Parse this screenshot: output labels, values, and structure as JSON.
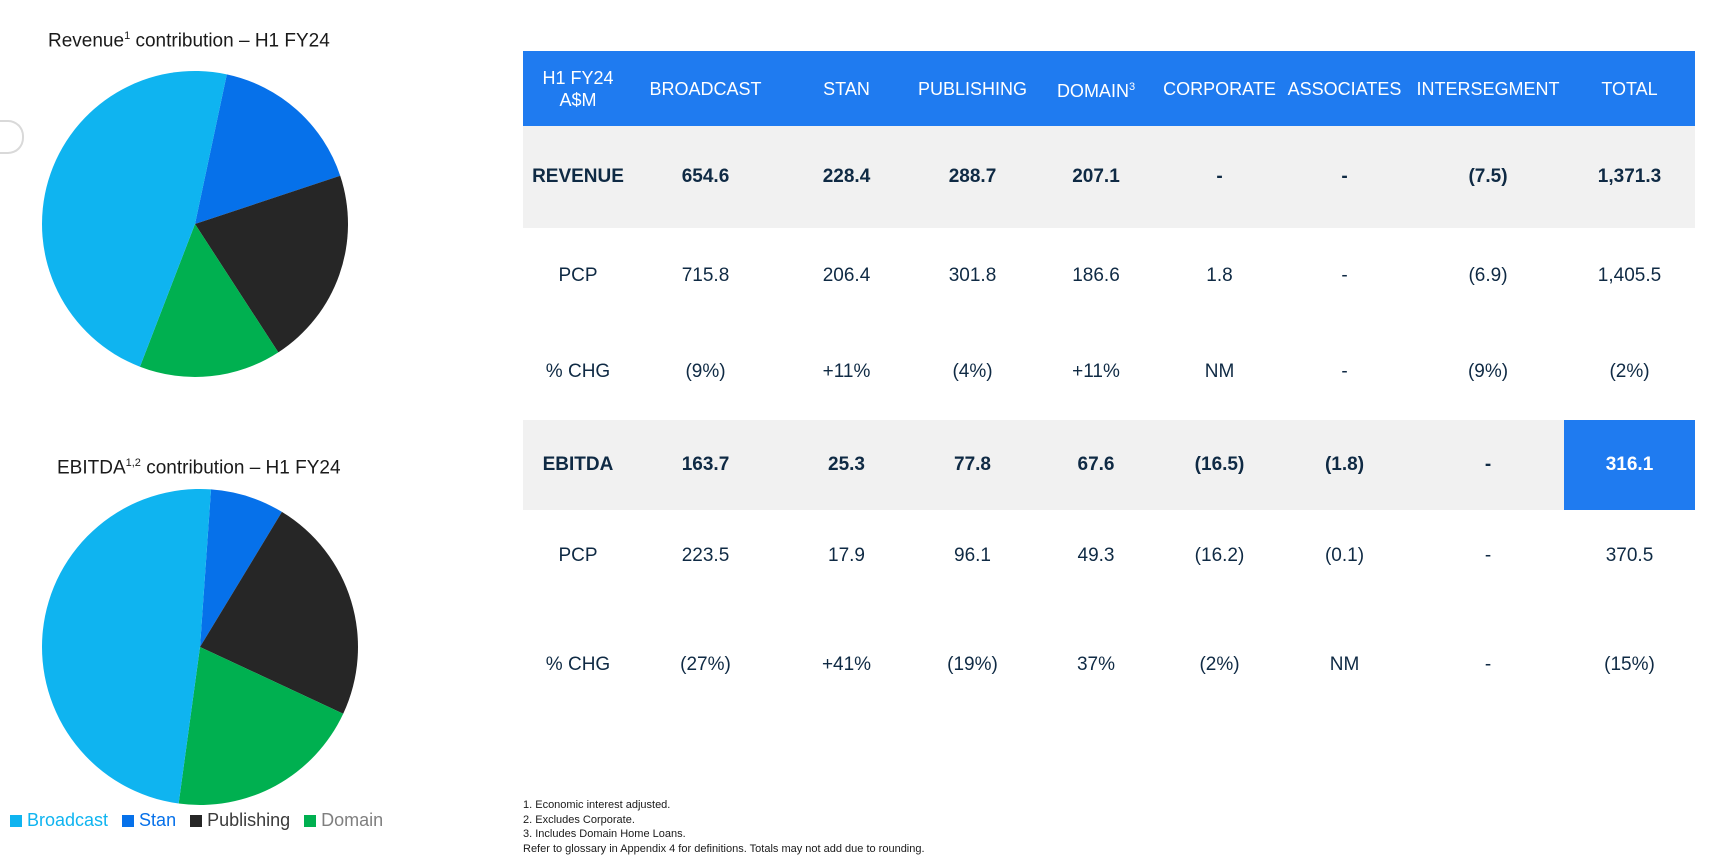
{
  "colors": {
    "broadcast": "#0fb4f0",
    "stan": "#0671ea",
    "publishing": "#262626",
    "domain": "#00b050",
    "header_bg": "#1f7bf0",
    "row_shade": "#f1f1f1"
  },
  "revenue_chart": {
    "title_main": "Revenue",
    "title_sup": "1",
    "title_rest": " contribution – H1 FY24"
  },
  "ebitda_chart": {
    "title_main": "EBITDA",
    "title_sup": "1,2",
    "title_rest": " contribution – H1 FY24"
  },
  "chart_data": [
    {
      "type": "pie",
      "title": "Revenue¹ contribution – H1 FY24",
      "categories": [
        "Broadcast",
        "Stan",
        "Publishing",
        "Domain"
      ],
      "values": [
        654.6,
        228.4,
        288.7,
        207.1
      ]
    },
    {
      "type": "pie",
      "title": "EBITDA¹˒² contribution – H1 FY24",
      "categories": [
        "Broadcast",
        "Stan",
        "Publishing",
        "Domain"
      ],
      "values": [
        163.7,
        25.3,
        77.8,
        67.6
      ]
    }
  ],
  "legend": [
    {
      "label": "Broadcast",
      "color": "#0fb4f0",
      "text_color": "#0fb4f0"
    },
    {
      "label": "Stan",
      "color": "#0671ea",
      "text_color": "#0671ea"
    },
    {
      "label": "Publishing",
      "color": "#262626",
      "text_color": "#3a3a3a"
    },
    {
      "label": "Domain",
      "color": "#00b050",
      "text_color": "#7f7f7f"
    }
  ],
  "table": {
    "header": {
      "col0_line1": "H1 FY24",
      "col0_line2": "A$M",
      "broadcast": "BROADCAST",
      "stan": "STAN",
      "publishing": "PUBLISHING",
      "domain": "DOMAIN",
      "domain_sup": "3",
      "corporate": "CORPORATE",
      "associates": "ASSOCIATES",
      "intersegment": "INTERSEGMENT",
      "total": "TOTAL"
    },
    "rows": [
      {
        "label": "REVENUE",
        "values": [
          "654.6",
          "228.4",
          "288.7",
          "207.1",
          "-",
          "-",
          "(7.5)",
          "1,371.3"
        ]
      },
      {
        "label": "PCP",
        "values": [
          "715.8",
          "206.4",
          "301.8",
          "186.6",
          "1.8",
          "-",
          "(6.9)",
          "1,405.5"
        ]
      },
      {
        "label": "% CHG",
        "values": [
          "(9%)",
          "+11%",
          "(4%)",
          "+11%",
          "NM",
          "-",
          "(9%)",
          "(2%)"
        ]
      },
      {
        "label": "EBITDA",
        "values": [
          "163.7",
          "25.3",
          "77.8",
          "67.6",
          "(16.5)",
          "(1.8)",
          "-",
          "316.1"
        ]
      },
      {
        "label": "PCP",
        "values": [
          "223.5",
          "17.9",
          "96.1",
          "49.3",
          "(16.2)",
          "(0.1)",
          "-",
          "370.5"
        ]
      },
      {
        "label": "% CHG",
        "values": [
          "(27%)",
          "+41%",
          "(19%)",
          "37%",
          "(2%)",
          "NM",
          "-",
          "(15%)"
        ]
      }
    ]
  },
  "footnotes": [
    "1. Economic interest adjusted.",
    "2. Excludes Corporate.",
    "3. Includes Domain Home Loans.",
    "Refer to glossary in Appendix 4 for definitions. Totals may not add due to rounding."
  ]
}
